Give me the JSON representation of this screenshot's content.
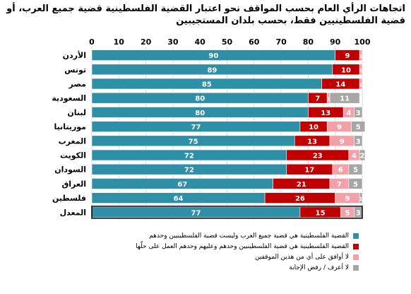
{
  "title": "اتجاهات الرأي العام بحسب المواقف نحو اعتبار القضية الفلسطينية قضية جميع العرب، أو قضية الفلسطينيين فقط، بحسب بلدان المستجيبين",
  "chart_data": {
    "type": "bar",
    "orientation": "horizontal",
    "stacked": true,
    "xlim": [
      0,
      100
    ],
    "xticks": [
      0,
      10,
      20,
      30,
      40,
      50,
      60,
      70,
      80,
      90,
      100
    ],
    "grid": true,
    "legend_position": "bottom",
    "categories": [
      "الأردن",
      "تونس",
      "مصر",
      "السعودية",
      "لبنان",
      "موريتانيا",
      "المغرب",
      "الكويت",
      "السودان",
      "العراق",
      "فلسطين",
      "المعدل"
    ],
    "series": [
      {
        "name": "القضية الفلسطينية هي قضية جميع العرب وليست قضية الفلسطينيين وحدهم",
        "color": "#2f8fa6",
        "values": [
          90,
          89,
          85,
          80,
          80,
          77,
          75,
          72,
          72,
          67,
          64,
          77
        ]
      },
      {
        "name": "القضية الفلسطينية هي قضية الفلسطينيين وحدهم وعليهم وحدهم العمل على حلّها",
        "color": "#c00000",
        "values": [
          9,
          10,
          14,
          7,
          13,
          10,
          13,
          23,
          17,
          21,
          26,
          15
        ]
      },
      {
        "name": "لا أوافق على أي من هذين الموقفين",
        "color": "#f4a0a8",
        "values": [
          1,
          1,
          1,
          1,
          4,
          9,
          9,
          4,
          6,
          7,
          9,
          5
        ]
      },
      {
        "name": "لا أعرف / رفض الإجابة",
        "color": "#a6a6a6",
        "values": [
          0,
          0,
          0,
          11,
          3,
          5,
          3,
          2,
          5,
          5,
          1,
          3
        ]
      }
    ]
  }
}
